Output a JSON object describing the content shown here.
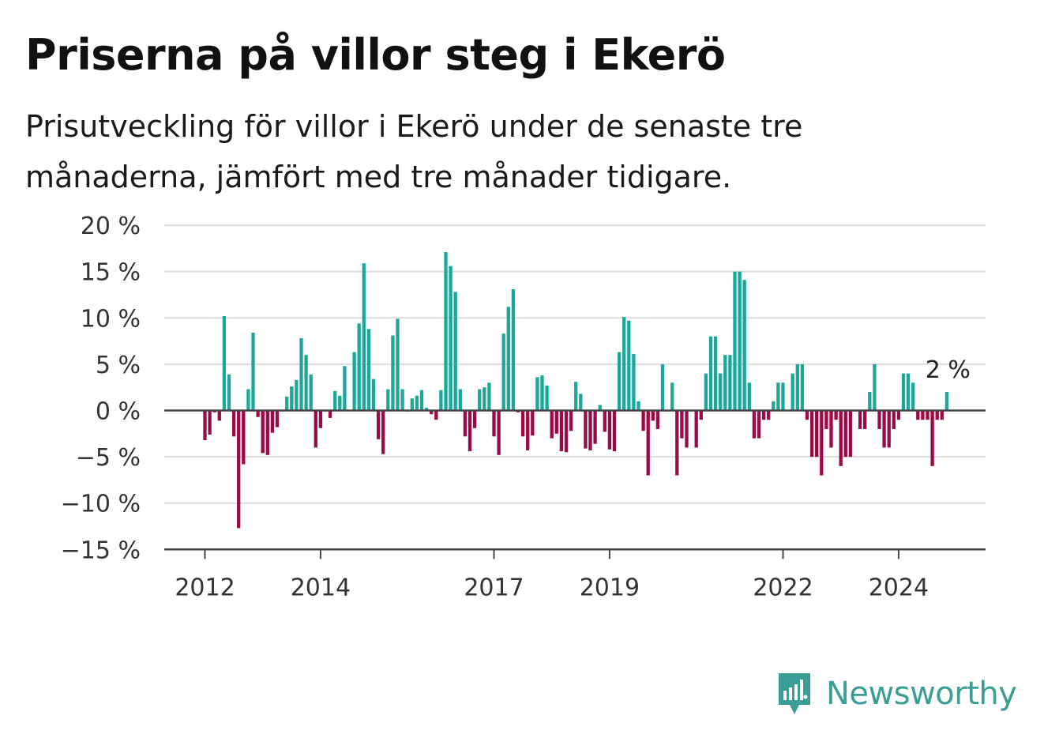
{
  "title": "Priserna på villor steg i Ekerö",
  "subtitle": "Prisutveckling för villor i Ekerö under de senaste tre månaderna, jämfört med tre månader tidigare.",
  "brand": {
    "name": "Newsworthy",
    "logo_icon": "bar-chart-speech-bubble-icon",
    "color": "#3b9e96"
  },
  "colors": {
    "positive": "#1ca79a",
    "negative": "#9b0a46",
    "grid": "#dddddd",
    "axis": "#444444"
  },
  "chart_data": {
    "type": "bar",
    "ylim": [
      -15,
      20
    ],
    "yticks": [
      20,
      15,
      10,
      5,
      0,
      -5,
      -10,
      -15
    ],
    "ytick_labels": [
      "20 %",
      "15 %",
      "10 %",
      "5 %",
      "0 %",
      "−5 %",
      "−10 %",
      "−15 %"
    ],
    "xticks": [
      {
        "label": "2012",
        "index": 0
      },
      {
        "label": "2014",
        "index": 24
      },
      {
        "label": "2017",
        "index": 60
      },
      {
        "label": "2019",
        "index": 84
      },
      {
        "label": "2022",
        "index": 120
      },
      {
        "label": "2024",
        "index": 144
      }
    ],
    "x_period": "month",
    "x_start": "2012-01",
    "values": [
      -3.2,
      -2.6,
      -0.2,
      -1.1,
      10.2,
      3.9,
      -2.8,
      -12.7,
      -5.8,
      2.3,
      8.4,
      -0.7,
      -4.6,
      -4.8,
      -2.4,
      -1.8,
      -0.1,
      1.5,
      2.6,
      3.3,
      7.8,
      6.0,
      3.9,
      -4.0,
      -1.9,
      -0.1,
      -0.8,
      2.1,
      1.6,
      4.8,
      0.0,
      6.3,
      9.4,
      15.9,
      8.8,
      3.4,
      -3.1,
      -4.7,
      2.3,
      8.1,
      9.9,
      2.3,
      -0.1,
      1.3,
      1.6,
      2.2,
      0.3,
      -0.4,
      -1.0,
      2.2,
      17.1,
      15.6,
      12.8,
      2.3,
      -2.8,
      -4.4,
      -1.9,
      2.3,
      2.5,
      3.0,
      -2.8,
      -4.8,
      8.3,
      11.2,
      13.1,
      -0.2,
      -2.8,
      -4.3,
      -2.7,
      3.6,
      3.8,
      2.7,
      -3.0,
      -2.5,
      -4.4,
      -4.5,
      -2.2,
      3.1,
      1.8,
      -4.1,
      -4.3,
      -3.6,
      0.6,
      -2.3,
      -4.2,
      -4.4,
      6.3,
      10.1,
      9.7,
      6.1,
      1.0,
      -2.2,
      -7.0,
      -1.1,
      -2.0,
      5.0,
      -0.1,
      3.0,
      -7.0,
      -3.0,
      -4.0,
      -0.1,
      -4.0,
      -1.0,
      4.0,
      8.0,
      8.0,
      4.0,
      6.0,
      6.0,
      15.0,
      15.0,
      14.1,
      3.0,
      -3.0,
      -3.0,
      -1.0,
      -1.0,
      1.0,
      3.0,
      3.0,
      0.0,
      4.0,
      5.0,
      5.0,
      -1.0,
      -5.0,
      -5.0,
      -7.0,
      -2.0,
      -4.0,
      -1.0,
      -6.0,
      -5.0,
      -5.0,
      -0.1,
      -2.0,
      -2.0,
      2.0,
      5.0,
      -2.0,
      -4.0,
      -4.0,
      -2.0,
      -1.0,
      4.0,
      4.0,
      3.0,
      -1.0,
      -1.0,
      -1.0,
      -6.0,
      -1.0,
      -1.0,
      2.0
    ],
    "last_value_label": "2 %"
  }
}
